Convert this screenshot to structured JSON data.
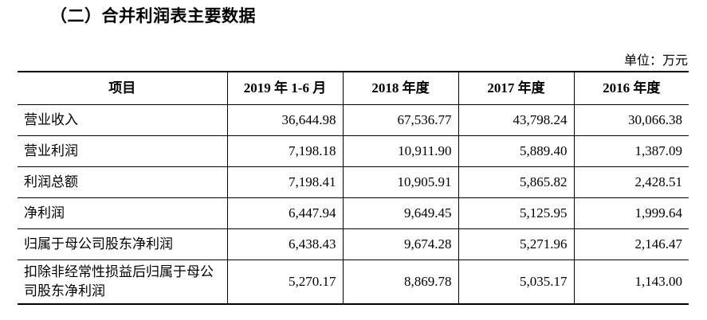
{
  "title": "（二）合并利润表主要数据",
  "unit_note": "单位：万元",
  "table": {
    "headers": [
      "项目",
      "2019 年 1-6 月",
      "2018 年度",
      "2017 年度",
      "2016 年度"
    ],
    "rows": [
      {
        "label": "营业收入",
        "values": [
          "36,644.98",
          "67,536.77",
          "43,798.24",
          "30,066.38"
        ]
      },
      {
        "label": "营业利润",
        "values": [
          "7,198.18",
          "10,911.90",
          "5,889.40",
          "1,387.09"
        ]
      },
      {
        "label": "利润总额",
        "values": [
          "7,198.41",
          "10,905.91",
          "5,865.82",
          "2,428.51"
        ]
      },
      {
        "label": "净利润",
        "values": [
          "6,447.94",
          "9,649.45",
          "5,125.95",
          "1,999.64"
        ]
      },
      {
        "label": "归属于母公司股东净利润",
        "values": [
          "6,438.43",
          "9,674.28",
          "5,271.96",
          "2,146.47"
        ]
      },
      {
        "label": "扣除非经常性损益后归属于母公司股东净利润",
        "values": [
          "5,270.17",
          "8,869.78",
          "5,035.17",
          "1,143.00"
        ]
      }
    ]
  }
}
